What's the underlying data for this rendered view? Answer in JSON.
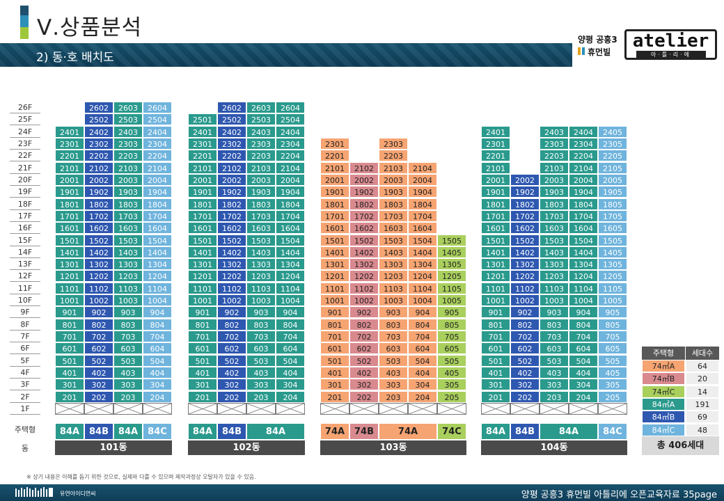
{
  "header": {
    "title": "Ⅴ.상품분석",
    "subtitle": "2) 동·호 배치도",
    "brand_line1": "양평 공흥3",
    "brand_line2": "휴먼빌",
    "brand_logo": "atelier",
    "brand_logo_sub": "아·틀·리·에",
    "accent_colors": [
      "#1f4f6e",
      "#2d8fb8",
      "#9ec73a"
    ]
  },
  "colors": {
    "84A": "#2a9a8d",
    "84B": "#2e57b0",
    "84C": "#6fb4dd",
    "74A": "#f6a472",
    "74B": "#d98a8f",
    "74C": "#a9cf5d"
  },
  "floors": [
    "26F",
    "25F",
    "24F",
    "23F",
    "22F",
    "21F",
    "20F",
    "19F",
    "18F",
    "17F",
    "16F",
    "15F",
    "14F",
    "13F",
    "12F",
    "11F",
    "10F",
    "9F",
    "8F",
    "7F",
    "6F",
    "5F",
    "4F",
    "3F",
    "2F",
    "1F"
  ],
  "buildings": [
    {
      "name": "101동",
      "cols": [
        {
          "type": "84A",
          "top": 24
        },
        {
          "type": "84B",
          "top": 26
        },
        {
          "type": "84A",
          "top": 26
        },
        {
          "type": "84C",
          "top": 26
        }
      ],
      "types": [
        {
          "label": "84A",
          "span": 1,
          "type": "84A"
        },
        {
          "label": "84B",
          "span": 1,
          "type": "84B"
        },
        {
          "label": "84A",
          "span": 1,
          "type": "84A"
        },
        {
          "label": "84C",
          "span": 1,
          "type": "84C"
        }
      ]
    },
    {
      "name": "102동",
      "cols": [
        {
          "type": "84A",
          "top": 25
        },
        {
          "type": "84B",
          "top": 26
        },
        {
          "type": "84A",
          "top": 26
        },
        {
          "type": "84A",
          "top": 26
        }
      ],
      "types": [
        {
          "label": "84A",
          "span": 1,
          "type": "84A"
        },
        {
          "label": "84B",
          "span": 1,
          "type": "84B"
        },
        {
          "label": "84A",
          "span": 2,
          "type": "84A"
        }
      ]
    },
    {
      "name": "103동",
      "cols": [
        {
          "type": "74A",
          "top": 23
        },
        {
          "type": "74B",
          "top": 21
        },
        {
          "type": "74A",
          "top": 23
        },
        {
          "type": "74A",
          "top": 21
        },
        {
          "type": "74C",
          "top": 15
        }
      ],
      "types": [
        {
          "label": "74A",
          "span": 1,
          "type": "74A"
        },
        {
          "label": "74B",
          "span": 1,
          "type": "74B"
        },
        {
          "label": "74A",
          "span": 2,
          "type": "74A"
        },
        {
          "label": "74C",
          "span": 1,
          "type": "74C"
        }
      ]
    },
    {
      "name": "104동",
      "cols": [
        {
          "type": "84A",
          "top": 24
        },
        {
          "type": "84B",
          "top": 20
        },
        {
          "type": "84A",
          "top": 24
        },
        {
          "type": "84A",
          "top": 24
        },
        {
          "type": "84C",
          "top": 24
        }
      ],
      "types": [
        {
          "label": "84A",
          "span": 1,
          "type": "84A"
        },
        {
          "label": "84B",
          "span": 1,
          "type": "84B"
        },
        {
          "label": "84A",
          "span": 2,
          "type": "84A"
        },
        {
          "label": "84C",
          "span": 1,
          "type": "84C"
        }
      ]
    }
  ],
  "row_labels": {
    "type": "주택형",
    "building": "동"
  },
  "legend": {
    "header": [
      "주택형",
      "세대수"
    ],
    "rows": [
      {
        "type": "74A",
        "label": "74㎡A",
        "count": "64"
      },
      {
        "type": "74B",
        "label": "74㎡B",
        "count": "20"
      },
      {
        "type": "74C",
        "label": "74㎡C",
        "count": "14"
      },
      {
        "type": "84A",
        "label": "84㎡A",
        "count": "191"
      },
      {
        "type": "84B",
        "label": "84㎡B",
        "count": "69"
      },
      {
        "type": "84C",
        "label": "84㎡C",
        "count": "48"
      }
    ],
    "total": "총 406세대"
  },
  "note": "※ 상기 내용은 이해를 돕기 위한 것으로, 실제와 다를 수 있으며 제작과정상 오탈자가 있을 수 있음.",
  "footer": {
    "company": "유연아이디연씨",
    "right": "양평 공흥3 휴먼빌 아틀리에  오픈교육자료  35page"
  }
}
